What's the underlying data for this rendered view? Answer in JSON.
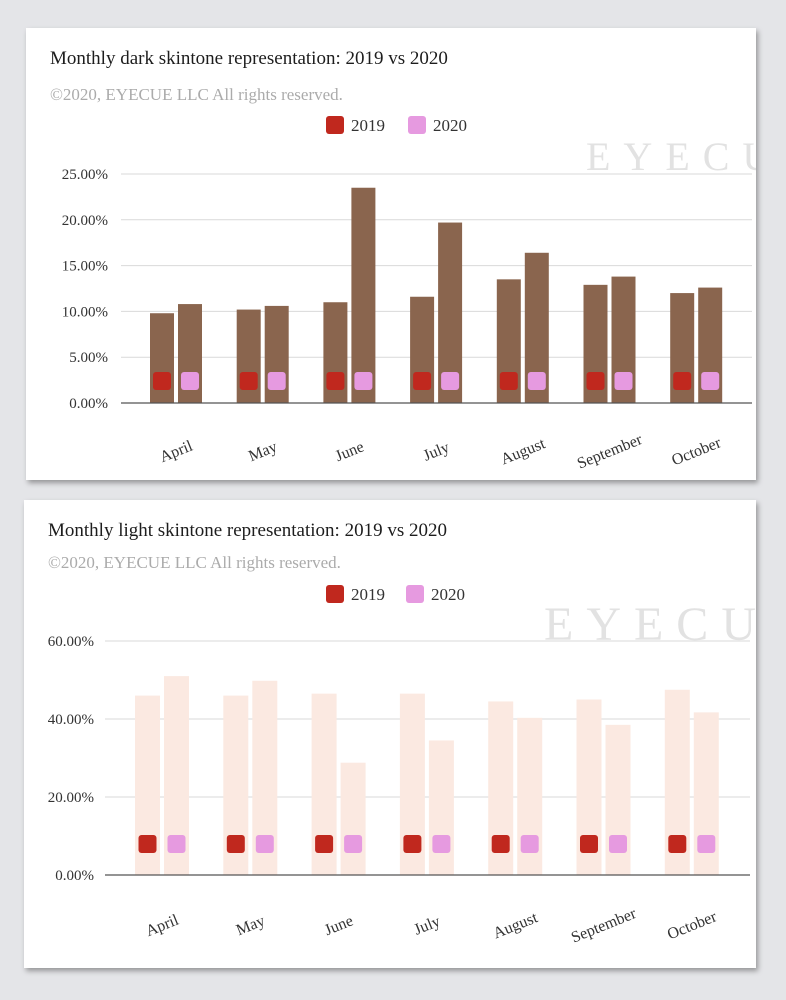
{
  "chart_data": [
    {
      "type": "bar",
      "title": "Monthly dark skintone representation: 2019 vs 2020",
      "subtitle": "©2020, EYECUE LLC All rights reserved.",
      "watermark": "EYECUE",
      "categories": [
        "April",
        "May",
        "June",
        "July",
        "August",
        "September",
        "October"
      ],
      "series": [
        {
          "name": "2019",
          "values": [
            9.8,
            10.2,
            11.0,
            11.6,
            13.5,
            12.9,
            12.0
          ],
          "legend_color": "#c0281e"
        },
        {
          "name": "2020",
          "values": [
            10.8,
            10.6,
            23.5,
            19.7,
            16.4,
            13.8,
            12.6
          ],
          "legend_color": "#e69ae0"
        }
      ],
      "bar_color": "#8a654e",
      "y_ticks": [
        "0.00%",
        "5.00%",
        "10.00%",
        "15.00%",
        "20.00%",
        "25.00%"
      ],
      "ylim": [
        0,
        25
      ],
      "legend_position": "top-center",
      "grid": true
    },
    {
      "type": "bar",
      "title": "Monthly light skintone representation: 2019 vs 2020",
      "subtitle": "©2020, EYECUE LLC All rights reserved.",
      "watermark": "EYECUE",
      "categories": [
        "April",
        "May",
        "June",
        "July",
        "August",
        "September",
        "October"
      ],
      "series": [
        {
          "name": "2019",
          "values": [
            46.0,
            46.0,
            46.5,
            46.5,
            44.5,
            45.0,
            47.5
          ],
          "legend_color": "#c0281e"
        },
        {
          "name": "2020",
          "values": [
            51.0,
            49.8,
            28.8,
            34.5,
            40.3,
            38.5,
            41.7
          ],
          "legend_color": "#e69ae0"
        }
      ],
      "bar_color": "#fbe9e1",
      "y_ticks": [
        "0.00%",
        "20.00%",
        "40.00%",
        "60.00%"
      ],
      "ylim": [
        0,
        60
      ],
      "legend_position": "top-center",
      "grid": true
    }
  ]
}
